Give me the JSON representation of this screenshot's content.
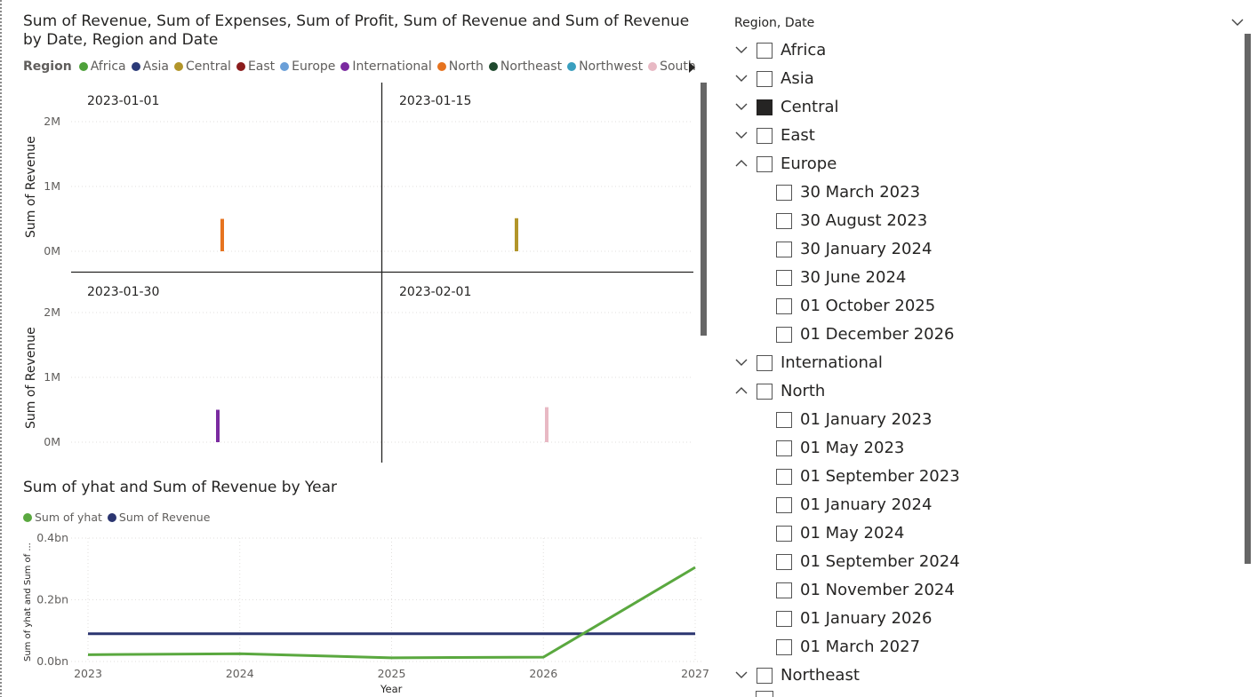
{
  "top_chart": {
    "title": "Sum of Revenue, Sum of Expenses, Sum of Profit, Sum of Revenue and Sum of Revenue by Date, Region and Date",
    "legend_label": "Region",
    "legend": [
      {
        "name": "Africa",
        "color": "#4ea13a"
      },
      {
        "name": "Asia",
        "color": "#2b3a78"
      },
      {
        "name": "Central",
        "color": "#b2952a"
      },
      {
        "name": "East",
        "color": "#8b1c1c"
      },
      {
        "name": "Europe",
        "color": "#6a9fd8"
      },
      {
        "name": "International",
        "color": "#7a2aa0"
      },
      {
        "name": "North",
        "color": "#e6731f"
      },
      {
        "name": "Northeast",
        "color": "#1f4a2e"
      },
      {
        "name": "Northwest",
        "color": "#3a9fbf"
      },
      {
        "name": "South",
        "color": "#e8b9c4"
      }
    ],
    "y_axis_label": "Sum of Revenue",
    "y_ticks": [
      "2M",
      "1M",
      "0M"
    ],
    "panels": [
      {
        "date": "2023-01-01"
      },
      {
        "date": "2023-01-15"
      },
      {
        "date": "2023-01-30"
      },
      {
        "date": "2023-02-01"
      }
    ]
  },
  "bottom_chart": {
    "title": "Sum of yhat and Sum of Revenue by Year",
    "y_axis_label": "Sum of yhat and Sum of ...",
    "x_axis_label": "Year"
  },
  "chart_data": [
    {
      "type": "bar",
      "title": "Sum of Revenue, Sum of Expenses, Sum of Profit, Sum of Revenue and Sum of Revenue by Date, Region and Date",
      "ylabel": "Sum of Revenue",
      "ylim": [
        0,
        2000000
      ],
      "y_ticks": [
        "0M",
        "1M",
        "2M"
      ],
      "panels": [
        {
          "date": "2023-01-01",
          "region": "North",
          "value": 500000
        },
        {
          "date": "2023-01-15",
          "region": "Central",
          "value": 510000
        },
        {
          "date": "2023-01-30",
          "region": "International",
          "value": 500000
        },
        {
          "date": "2023-02-01",
          "region": "South",
          "value": 540000
        }
      ]
    },
    {
      "type": "line",
      "title": "Sum of yhat and Sum of Revenue by Year",
      "xlabel": "Year",
      "ylabel": "Sum of yhat and Sum of ...",
      "x": [
        2023,
        2024,
        2025,
        2026,
        2027
      ],
      "ylim": [
        0,
        0.4
      ],
      "y_ticks": [
        "0.0bn",
        "0.2bn",
        "0.4bn"
      ],
      "series": [
        {
          "name": "Sum of yhat",
          "color": "#5aa83f",
          "values": [
            0.022,
            0.025,
            0.012,
            0.014,
            0.305
          ]
        },
        {
          "name": "Sum of Revenue",
          "color": "#2b3570",
          "values": [
            0.09,
            0.09,
            0.09,
            0.09,
            0.09
          ]
        }
      ]
    }
  ],
  "slicer": {
    "header": "Region, Date",
    "rows": [
      {
        "label": "Africa",
        "level": 0,
        "expanded": false,
        "checked": false
      },
      {
        "label": "Asia",
        "level": 0,
        "expanded": false,
        "checked": false
      },
      {
        "label": "Central",
        "level": 0,
        "expanded": false,
        "checked": true
      },
      {
        "label": "East",
        "level": 0,
        "expanded": false,
        "checked": false
      },
      {
        "label": "Europe",
        "level": 0,
        "expanded": true,
        "checked": false
      },
      {
        "label": "30 March 2023",
        "level": 1,
        "checked": false
      },
      {
        "label": "30 August 2023",
        "level": 1,
        "checked": false
      },
      {
        "label": "30 January 2024",
        "level": 1,
        "checked": false
      },
      {
        "label": "30 June 2024",
        "level": 1,
        "checked": false
      },
      {
        "label": "01 October 2025",
        "level": 1,
        "checked": false
      },
      {
        "label": "01 December 2026",
        "level": 1,
        "checked": false
      },
      {
        "label": "International",
        "level": 0,
        "expanded": false,
        "checked": false
      },
      {
        "label": "North",
        "level": 0,
        "expanded": true,
        "checked": false
      },
      {
        "label": "01 January 2023",
        "level": 1,
        "checked": false
      },
      {
        "label": "01 May 2023",
        "level": 1,
        "checked": false
      },
      {
        "label": "01 September 2023",
        "level": 1,
        "checked": false
      },
      {
        "label": "01 January 2024",
        "level": 1,
        "checked": false
      },
      {
        "label": "01 May 2024",
        "level": 1,
        "checked": false
      },
      {
        "label": "01 September 2024",
        "level": 1,
        "checked": false
      },
      {
        "label": "01 November 2024",
        "level": 1,
        "checked": false
      },
      {
        "label": "01 January 2026",
        "level": 1,
        "checked": false
      },
      {
        "label": "01 March 2027",
        "level": 1,
        "checked": false
      },
      {
        "label": "Northeast",
        "level": 0,
        "expanded": false,
        "checked": false
      }
    ]
  }
}
